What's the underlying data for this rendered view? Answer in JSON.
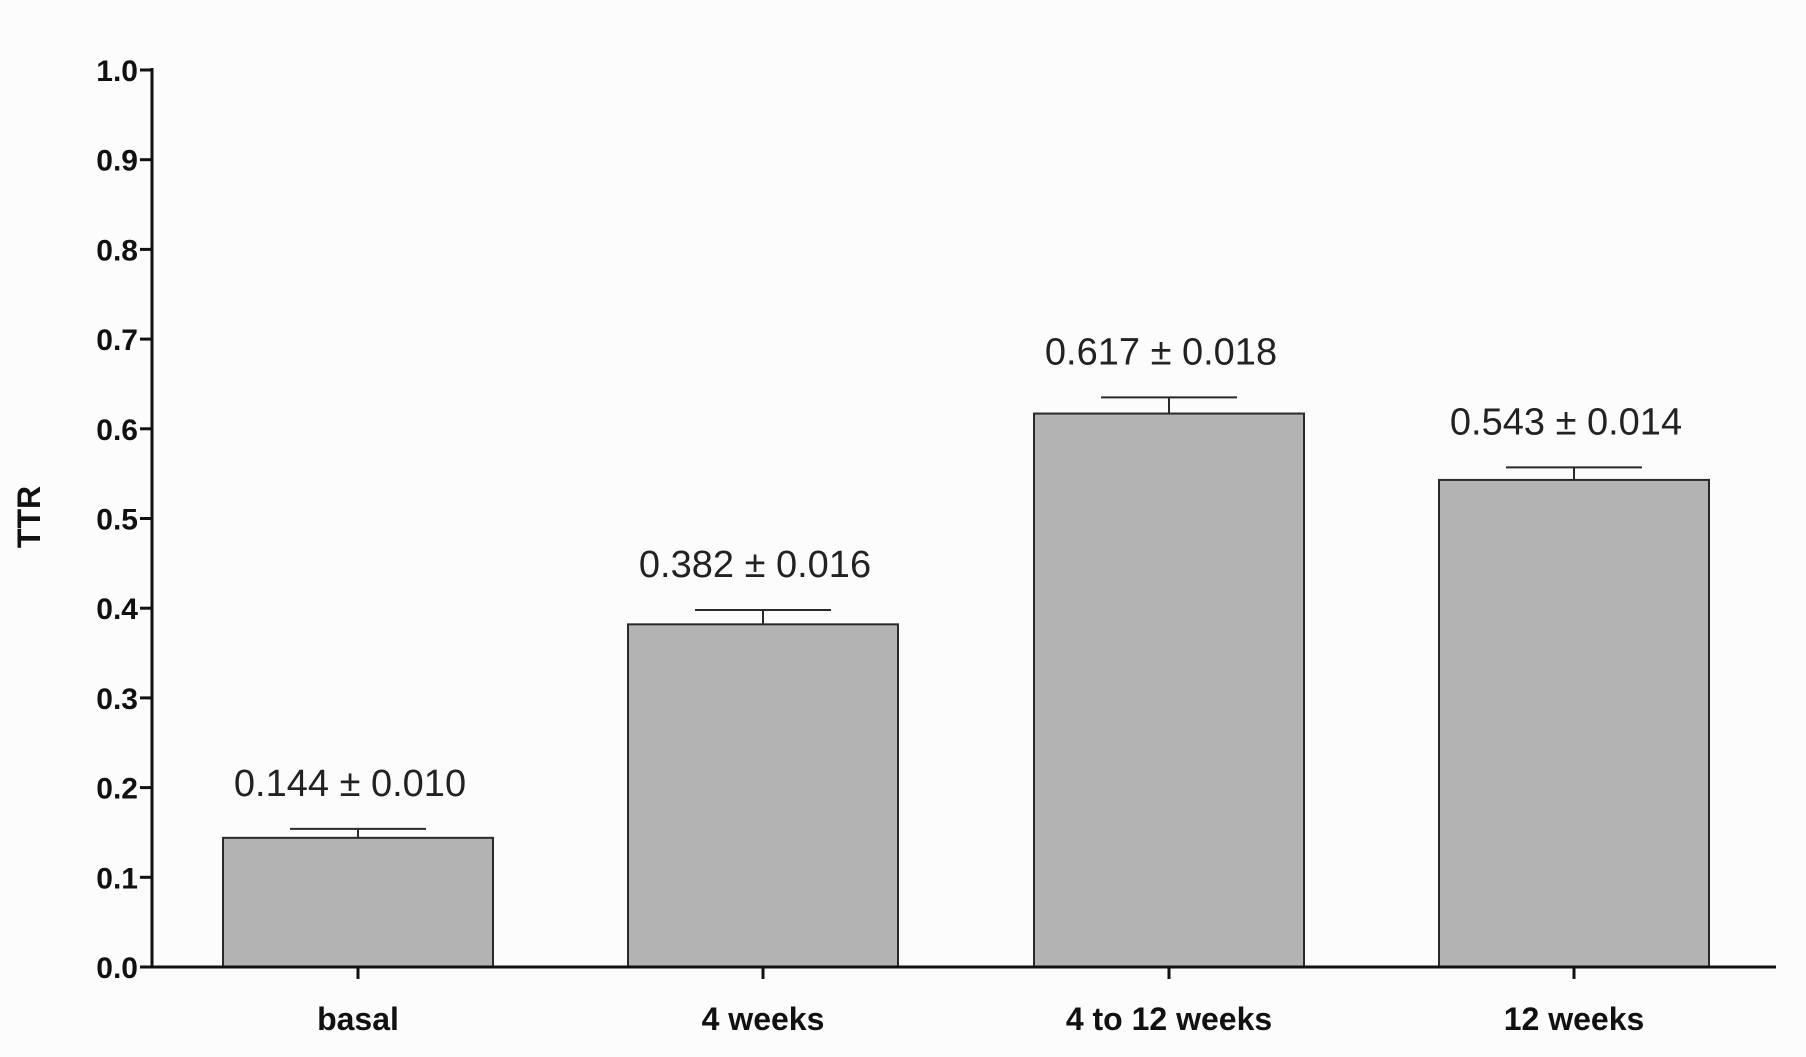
{
  "chart_data": {
    "type": "bar",
    "categories": [
      "basal",
      "4 weeks",
      "4 to 12 weeks",
      "12 weeks"
    ],
    "values": [
      0.144,
      0.382,
      0.617,
      0.543
    ],
    "errors": [
      0.01,
      0.016,
      0.018,
      0.014
    ],
    "data_labels": [
      "0.144 ± 0.010",
      "0.382 ± 0.016",
      "0.617 ± 0.018",
      "0.543 ± 0.014"
    ],
    "title": "",
    "xlabel": "",
    "ylabel": "TTR",
    "ylim": [
      0.0,
      1.0
    ],
    "yticks": [
      "0.0",
      "0.1",
      "0.2",
      "0.3",
      "0.4",
      "0.5",
      "0.6",
      "0.7",
      "0.8",
      "0.9",
      "1.0"
    ],
    "grid": false,
    "legend": "none",
    "bar_color": "#b3b3b3",
    "bar_edge_color": "#2a2a2a",
    "axis_color": "#111111"
  }
}
